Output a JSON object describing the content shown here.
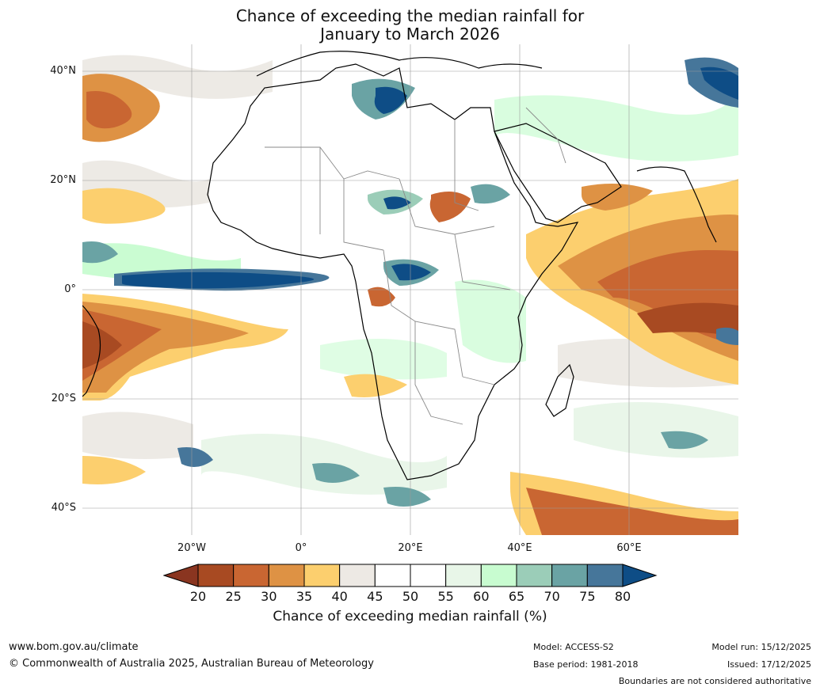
{
  "title": {
    "line1": "Chance of exceeding the median rainfall for",
    "line2": "January to March 2026"
  },
  "map": {
    "lat_labels": [
      "40°N",
      "20°N",
      "0°",
      "20°S",
      "40°S"
    ],
    "lon_labels": [
      "20°W",
      "0°",
      "20°E",
      "40°E",
      "60°E"
    ],
    "extent": {
      "lon_min": -40,
      "lon_max": 80,
      "lat_min": -45,
      "lat_max": 45
    },
    "gridlines": true
  },
  "colorbar": {
    "ticks": [
      "20",
      "25",
      "30",
      "35",
      "40",
      "45",
      "50",
      "55",
      "60",
      "65",
      "70",
      "75",
      "80"
    ],
    "colors": [
      "#a84a22",
      "#c96632",
      "#de9244",
      "#fccf6e",
      "#ede9e4",
      "#ffffff",
      "#ffffff",
      "#e8f6e8",
      "#c8fcd0",
      "#9bcdb8",
      "#6aa3a4",
      "#46769a"
    ],
    "under_color": "#8a3520",
    "over_color": "#0e4d86",
    "label": "Chance of exceeding median rainfall (%)"
  },
  "footer": {
    "website": "www.bom.gov.au/climate",
    "copyright": "© Commonwealth of Australia 2025, Australian Bureau of Meteorology",
    "model": "Model: ACCESS-S2",
    "base_period": "Base period: 1981-2018",
    "model_run": "Model run: 15/12/2025",
    "issued": "Issued: 17/12/2025",
    "boundaries": "Boundaries are not considered authoritative"
  }
}
